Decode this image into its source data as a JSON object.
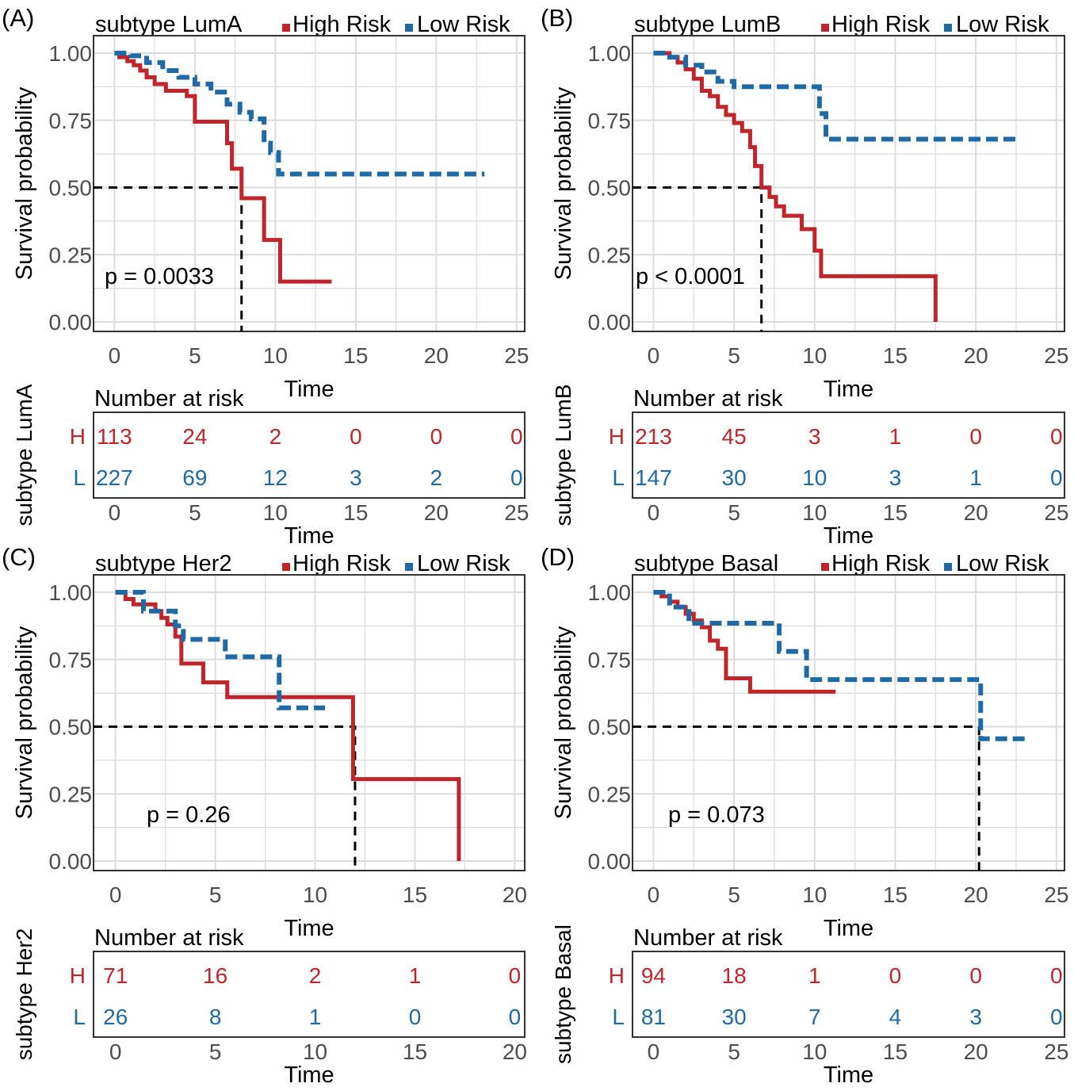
{
  "colors": {
    "high": "#c0252b",
    "low": "#1f6aa5",
    "grid": "#dcdcdc",
    "text": "#000000",
    "tick": "#4d4d4d"
  },
  "chart_data": [
    {
      "type": "line",
      "panel_label": "(A)",
      "title": "subtype LumA",
      "legend": [
        "High Risk",
        "Low Risk"
      ],
      "xlabel": "Time",
      "ylabel": "Survival probability",
      "xlim": [
        -1.3,
        25.5
      ],
      "ylim": [
        0,
        1
      ],
      "xticks": [
        0,
        5,
        10,
        15,
        20,
        25
      ],
      "yticks": [
        "0.00",
        "0.25",
        "0.50",
        "0.75",
        "1.00"
      ],
      "pvalue": "p = 0.0033",
      "median_high": 7.9,
      "series": [
        {
          "name": "High Risk",
          "time": [
            0,
            0.3,
            0.8,
            1.2,
            1.6,
            2.0,
            2.5,
            3.2,
            4.5,
            5.0,
            7.0,
            7.3,
            7.9,
            9.3,
            10.3,
            11.0,
            13.5
          ],
          "surv": [
            1,
            0.985,
            0.97,
            0.955,
            0.935,
            0.91,
            0.885,
            0.86,
            0.84,
            0.745,
            0.665,
            0.57,
            0.46,
            0.305,
            0.15,
            0.15,
            0.15
          ]
        },
        {
          "name": "Low Risk",
          "time": [
            0,
            1,
            2,
            3,
            4,
            5,
            6,
            7,
            7.8,
            8.5,
            9.3,
            9.7,
            10.2,
            23.0
          ],
          "surv": [
            1,
            0.99,
            0.965,
            0.935,
            0.91,
            0.885,
            0.855,
            0.81,
            0.78,
            0.755,
            0.665,
            0.63,
            0.55,
            0.55
          ]
        }
      ],
      "risk_table": {
        "title": "Number at risk",
        "ylabel": "subtype LumA",
        "times": [
          0,
          5,
          10,
          15,
          20,
          25
        ],
        "rows": [
          {
            "label": "H",
            "values": [
              "113",
              "24",
              "2",
              "0",
              "0",
              "0"
            ]
          },
          {
            "label": "L",
            "values": [
              "227",
              "69",
              "12",
              "3",
              "2",
              "0"
            ]
          }
        ]
      }
    },
    {
      "type": "line",
      "panel_label": "(B)",
      "title": "subtype LumB",
      "legend": [
        "High Risk",
        "Low Risk"
      ],
      "xlabel": "Time",
      "ylabel": "Survival probability",
      "xlim": [
        -1.3,
        25.5
      ],
      "ylim": [
        0,
        1
      ],
      "xticks": [
        0,
        5,
        10,
        15,
        20,
        25
      ],
      "yticks": [
        "0.00",
        "0.25",
        "0.50",
        "0.75",
        "1.00"
      ],
      "pvalue": "p < 0.0001",
      "median_high": 6.7,
      "series": [
        {
          "name": "High Risk",
          "time": [
            0,
            1,
            1.5,
            2,
            2.5,
            3,
            3.5,
            4,
            4.5,
            5,
            5.5,
            6,
            6.3,
            6.7,
            7.2,
            7.6,
            8.1,
            9.2,
            10.0,
            10.4,
            17.5,
            17.5
          ],
          "surv": [
            1,
            0.985,
            0.965,
            0.94,
            0.905,
            0.86,
            0.84,
            0.8,
            0.77,
            0.74,
            0.71,
            0.65,
            0.58,
            0.5,
            0.465,
            0.43,
            0.395,
            0.345,
            0.265,
            0.17,
            0.17,
            0.0
          ]
        },
        {
          "name": "Low Risk",
          "time": [
            0,
            1,
            2,
            3,
            4,
            5,
            10.3,
            10.7,
            22.5
          ],
          "surv": [
            1,
            0.985,
            0.955,
            0.93,
            0.895,
            0.875,
            0.775,
            0.68,
            0.68
          ]
        }
      ],
      "risk_table": {
        "title": "Number at risk",
        "ylabel": "subtype LumB",
        "times": [
          0,
          5,
          10,
          15,
          20,
          25
        ],
        "rows": [
          {
            "label": "H",
            "values": [
              "213",
              "45",
              "3",
              "1",
              "0",
              "0"
            ]
          },
          {
            "label": "L",
            "values": [
              "147",
              "30",
              "10",
              "3",
              "1",
              "0"
            ]
          }
        ]
      }
    },
    {
      "type": "line",
      "panel_label": "(C)",
      "title": "subtype Her2",
      "legend": [
        "High Risk",
        "Low Risk"
      ],
      "xlabel": "Time",
      "ylabel": "Survival probability",
      "xlim": [
        -1.1,
        20.5
      ],
      "ylim": [
        0,
        1
      ],
      "xticks": [
        0,
        5,
        10,
        15,
        20
      ],
      "yticks": [
        "0.00",
        "0.25",
        "0.50",
        "0.75",
        "1.00"
      ],
      "pvalue": "p = 0.26",
      "median_high": 12.0,
      "series": [
        {
          "name": "High Risk",
          "time": [
            0,
            0.5,
            0.9,
            2.0,
            2.3,
            2.6,
            3.0,
            3.3,
            4.4,
            5.6,
            11.8,
            11.9,
            17.2,
            17.2
          ],
          "surv": [
            1,
            0.975,
            0.955,
            0.93,
            0.905,
            0.88,
            0.835,
            0.735,
            0.665,
            0.61,
            0.61,
            0.305,
            0.305,
            0.0
          ]
        },
        {
          "name": "Low Risk",
          "time": [
            0,
            1.4,
            3.0,
            3.4,
            5.5,
            8.2,
            10.5
          ],
          "surv": [
            1,
            0.93,
            0.875,
            0.825,
            0.76,
            0.57,
            0.57
          ]
        }
      ],
      "risk_table": {
        "title": "Number at risk",
        "ylabel": "subtype Her2",
        "times": [
          0,
          5,
          10,
          15,
          20
        ],
        "rows": [
          {
            "label": "H",
            "values": [
              "71",
              "16",
              "2",
              "1",
              "0"
            ]
          },
          {
            "label": "L",
            "values": [
              "26",
              "8",
              "1",
              "0",
              "0"
            ]
          }
        ]
      }
    },
    {
      "type": "line",
      "panel_label": "(D)",
      "title": "subtype Basal",
      "legend": [
        "High Risk",
        "Low Risk"
      ],
      "xlabel": "Time",
      "ylabel": "Survival probability",
      "xlim": [
        -1.3,
        25.5
      ],
      "ylim": [
        0,
        1
      ],
      "xticks": [
        0,
        5,
        10,
        15,
        20,
        25
      ],
      "yticks": [
        "0.00",
        "0.25",
        "0.50",
        "0.75",
        "1.00"
      ],
      "pvalue": "p = 0.073",
      "median_low": 20.2,
      "series": [
        {
          "name": "High Risk",
          "time": [
            0,
            0.5,
            1,
            1.5,
            2,
            2.5,
            3,
            3.5,
            4,
            4.5,
            6,
            11.3
          ],
          "surv": [
            1,
            0.985,
            0.965,
            0.945,
            0.92,
            0.895,
            0.87,
            0.82,
            0.79,
            0.68,
            0.63,
            0.63
          ]
        },
        {
          "name": "Low Risk",
          "time": [
            0,
            1,
            2.2,
            7.5,
            7.8,
            9.5,
            20.0,
            20.3,
            23.2
          ],
          "surv": [
            1,
            0.945,
            0.885,
            0.885,
            0.78,
            0.675,
            0.675,
            0.455,
            0.455
          ]
        }
      ],
      "risk_table": {
        "title": "Number at risk",
        "ylabel": "subtype Basal",
        "times": [
          0,
          5,
          10,
          15,
          20,
          25
        ],
        "rows": [
          {
            "label": "H",
            "values": [
              "94",
              "18",
              "1",
              "0",
              "0",
              "0"
            ]
          },
          {
            "label": "L",
            "values": [
              "81",
              "30",
              "7",
              "4",
              "3",
              "0"
            ]
          }
        ]
      }
    }
  ]
}
